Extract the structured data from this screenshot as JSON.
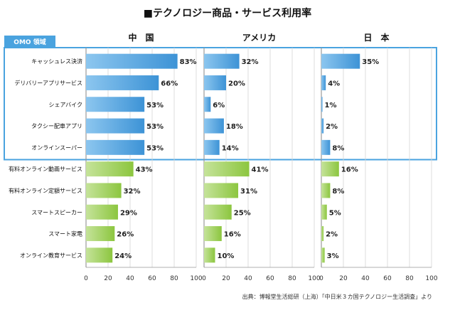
{
  "title": "■テクノロジー商品・サービス利用率",
  "omo_label": "OMO 領域",
  "source": "出典：博報堂生活総研（上海）「中日米３カ国テクノロジー生活調査」より",
  "colors": {
    "omo_bar": "#3d93d6",
    "omo_bar_light": "#8cc6ef",
    "other_bar": "#8cc63f",
    "other_bar_light": "#c5e39a",
    "frame": "#4aa3df",
    "omo_tag_bg": "#4aa3df",
    "grid": "#d6d6d6",
    "text": "#222222"
  },
  "chart_data": {
    "type": "bar",
    "orientation": "horizontal",
    "categories": [
      "キャッシュレス決済",
      "デリバリーアプリサービス",
      "シェアバイク",
      "タクシー配車アプリ",
      "オンラインスーパー",
      "有料オンライン動画サービス",
      "有料オンライン定額サービス",
      "スマートスピーカー",
      "スマート家電",
      "オンライン教育サービス"
    ],
    "omo_categories_count": 5,
    "panels": [
      {
        "name": "中　国",
        "values": [
          83,
          66,
          53,
          53,
          53,
          43,
          32,
          29,
          26,
          24
        ]
      },
      {
        "name": "アメリカ",
        "values": [
          32,
          20,
          6,
          18,
          14,
          41,
          31,
          25,
          16,
          10
        ]
      },
      {
        "name": "日　本",
        "values": [
          35,
          4,
          1,
          2,
          8,
          16,
          8,
          5,
          2,
          3
        ]
      }
    ],
    "unit": "%",
    "xlim": [
      0,
      100
    ],
    "xticks": [
      0,
      20,
      40,
      60,
      80,
      100
    ],
    "grid": true
  }
}
